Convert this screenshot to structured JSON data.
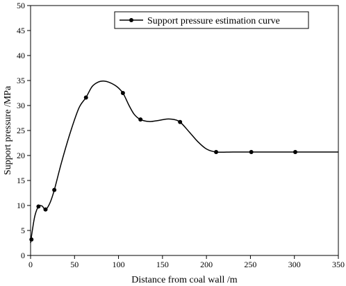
{
  "chart_data": {
    "type": "line",
    "xlabel": "Distance from coal wall /m",
    "ylabel": "Support pressure /MPa",
    "xlim": [
      0,
      350
    ],
    "ylim": [
      0,
      50
    ],
    "xticks": [
      0,
      50,
      100,
      150,
      200,
      250,
      300,
      350
    ],
    "yticks": [
      0,
      5,
      10,
      15,
      20,
      25,
      30,
      35,
      40,
      45,
      50
    ],
    "grid": false,
    "legend_position": "top-right",
    "series": [
      {
        "name": "Support pressure estimation curve",
        "color": "#000000",
        "markers": [
          {
            "x": 1,
            "y": 3.2
          },
          {
            "x": 9,
            "y": 9.8
          },
          {
            "x": 17,
            "y": 9.2
          },
          {
            "x": 27,
            "y": 13.1
          },
          {
            "x": 63,
            "y": 31.6
          },
          {
            "x": 105,
            "y": 32.5
          },
          {
            "x": 125,
            "y": 27.2
          },
          {
            "x": 170,
            "y": 26.7
          },
          {
            "x": 211,
            "y": 20.7
          },
          {
            "x": 251,
            "y": 20.7
          },
          {
            "x": 301,
            "y": 20.7
          }
        ],
        "curve": [
          {
            "x": 0,
            "y": 2.5
          },
          {
            "x": 2,
            "y": 5.0
          },
          {
            "x": 5,
            "y": 8.0
          },
          {
            "x": 9,
            "y": 9.8
          },
          {
            "x": 13,
            "y": 9.9
          },
          {
            "x": 17,
            "y": 9.2
          },
          {
            "x": 22,
            "y": 10.5
          },
          {
            "x": 27,
            "y": 13.1
          },
          {
            "x": 35,
            "y": 18.5
          },
          {
            "x": 45,
            "y": 24.5
          },
          {
            "x": 55,
            "y": 29.5
          },
          {
            "x": 63,
            "y": 31.6
          },
          {
            "x": 70,
            "y": 33.8
          },
          {
            "x": 77,
            "y": 34.7
          },
          {
            "x": 83,
            "y": 34.9
          },
          {
            "x": 90,
            "y": 34.6
          },
          {
            "x": 98,
            "y": 33.8
          },
          {
            "x": 105,
            "y": 32.5
          },
          {
            "x": 112,
            "y": 30.0
          },
          {
            "x": 118,
            "y": 28.2
          },
          {
            "x": 125,
            "y": 27.2
          },
          {
            "x": 135,
            "y": 26.8
          },
          {
            "x": 145,
            "y": 27.0
          },
          {
            "x": 155,
            "y": 27.3
          },
          {
            "x": 163,
            "y": 27.2
          },
          {
            "x": 170,
            "y": 26.7
          },
          {
            "x": 180,
            "y": 24.8
          },
          {
            "x": 190,
            "y": 22.8
          },
          {
            "x": 200,
            "y": 21.3
          },
          {
            "x": 211,
            "y": 20.7
          },
          {
            "x": 230,
            "y": 20.7
          },
          {
            "x": 251,
            "y": 20.7
          },
          {
            "x": 275,
            "y": 20.7
          },
          {
            "x": 301,
            "y": 20.7
          },
          {
            "x": 325,
            "y": 20.7
          },
          {
            "x": 350,
            "y": 20.7
          }
        ]
      }
    ]
  }
}
